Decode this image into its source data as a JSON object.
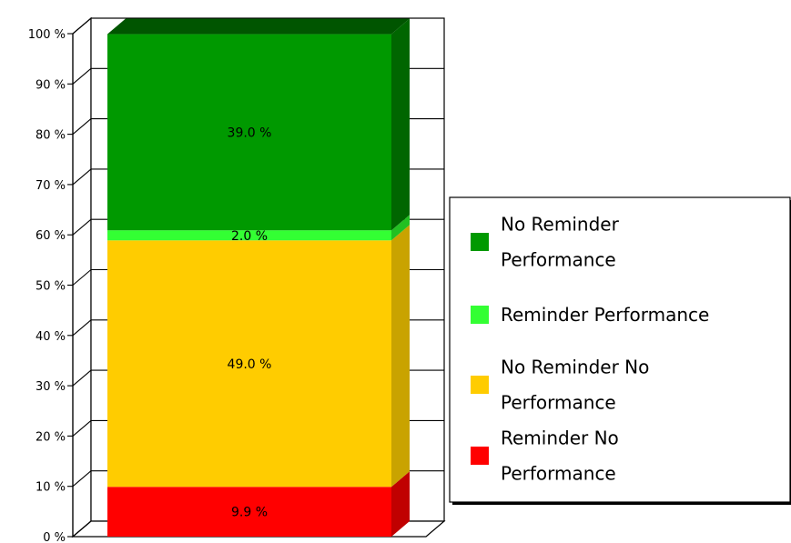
{
  "chart_data": {
    "type": "bar",
    "stacked": true,
    "three_d": true,
    "categories": [
      ""
    ],
    "series": [
      {
        "name": "Reminder No Performance",
        "values": [
          9.9
        ],
        "color": "#ff0000",
        "side_color": "#c00000",
        "top_color": "#ff5050",
        "label": "9.9 %"
      },
      {
        "name": "No Reminder No Performance",
        "values": [
          49.0
        ],
        "color": "#ffcc00",
        "side_color": "#c9a300",
        "top_color": "#ffdb40",
        "label": "49.0 %"
      },
      {
        "name": "Reminder Performance",
        "values": [
          2.0
        ],
        "color": "#33ff33",
        "side_color": "#22c022",
        "top_color": "#66ff66",
        "label": "2.0 %"
      },
      {
        "name": "No Reminder Performance",
        "values": [
          39.0
        ],
        "color": "#009900",
        "side_color": "#006600",
        "top_color": "#005500",
        "label": "39.0 %"
      }
    ],
    "yticks": [
      "0 %",
      "10 %",
      "20 %",
      "30 %",
      "40 %",
      "50 %",
      "60 %",
      "70 %",
      "80 %",
      "90 %",
      "100 %"
    ],
    "ylim": [
      0,
      100
    ],
    "grid": true,
    "legend_position": "right",
    "legend_order": [
      3,
      2,
      1,
      0
    ],
    "legend": [
      {
        "lines": [
          "No Reminder",
          "Performance"
        ],
        "color": "#009900"
      },
      {
        "lines": [
          "Reminder Performance"
        ],
        "color": "#33ff33"
      },
      {
        "lines": [
          "No Reminder No",
          "Performance"
        ],
        "color": "#ffcc00"
      },
      {
        "lines": [
          "Reminder No",
          "Performance"
        ],
        "color": "#ff0000"
      }
    ]
  }
}
